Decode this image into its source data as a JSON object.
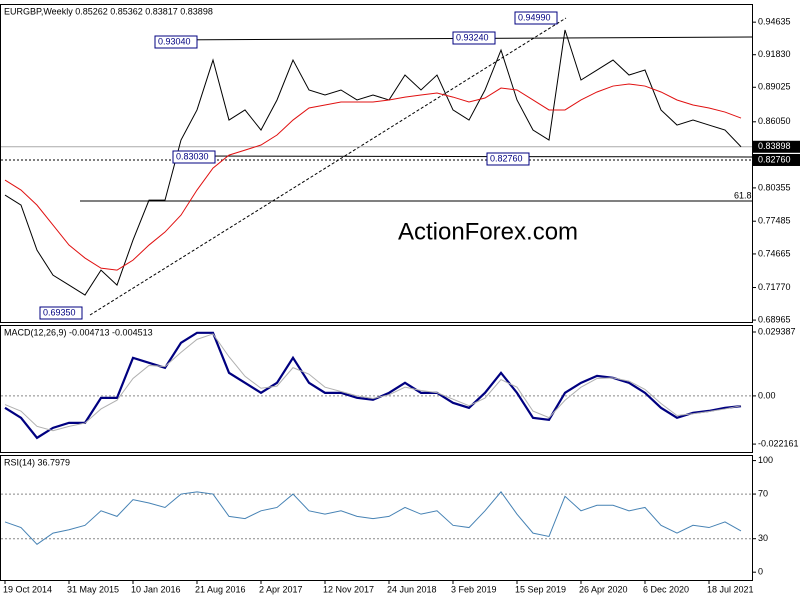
{
  "chart_data": [
    {
      "type": "line",
      "title": "EURGBP,Weekly  0.85262 0.85362 0.83817 0.83898",
      "series": [
        {
          "color": "#000000",
          "values": [
            0.7974,
            0.7887,
            0.7499,
            0.7284,
            0.7198,
            0.7112,
            0.7327,
            0.7198,
            0.7586,
            0.793,
            0.793,
            0.8448,
            0.8707,
            0.9137,
            0.862,
            0.8707,
            0.8534,
            0.8793,
            0.9137,
            0.8879,
            0.8836,
            0.8879,
            0.8793,
            0.8836,
            0.8793,
            0.9008,
            0.8879,
            0.9008,
            0.8707,
            0.862,
            0.8879,
            0.9223,
            0.8793,
            0.8534,
            0.8448,
            0.9396,
            0.8965,
            0.9051,
            0.9137,
            0.9008,
            0.9051,
            0.8707,
            0.8577,
            0.862,
            0.8577,
            0.8534,
            0.839
          ]
        },
        {
          "color": "#e01010",
          "values": [
            0.8103,
            0.8017,
            0.7887,
            0.7715,
            0.7543,
            0.7431,
            0.7344,
            0.7327,
            0.7413,
            0.7543,
            0.7655,
            0.7801,
            0.8017,
            0.8206,
            0.8318,
            0.8361,
            0.8405,
            0.8491,
            0.862,
            0.8724,
            0.875,
            0.8776,
            0.8776,
            0.8776,
            0.8793,
            0.8818,
            0.8836,
            0.8853,
            0.8818,
            0.8776,
            0.881,
            0.8896,
            0.8879,
            0.8793,
            0.8707,
            0.8707,
            0.8793,
            0.8862,
            0.8913,
            0.8931,
            0.8913,
            0.8862,
            0.8793,
            0.875,
            0.8724,
            0.8689,
            0.8637
          ]
        }
      ],
      "ylim": [
        0.688,
        0.962
      ],
      "yticks": [
        0.94635,
        {
          "value": 0.9183,
          "label": "0.91830"
        },
        0.89025,
        {
          "value": 0.8605,
          "label": "0.86050"
        },
        0.80355,
        0.77485,
        0.74665,
        {
          "value": 0.7177,
          "label": "0.71770"
        },
        0.68965
      ],
      "price_markers": [
        0.83898,
        {
          "value": 0.8276,
          "label": "0.82760"
        }
      ],
      "annotations": [
        "0.93040",
        "0.93240",
        "0.94990",
        "0.83030",
        "0.82760",
        "0.69350",
        "61.8"
      ],
      "watermark": "ActionForex.com"
    },
    {
      "type": "line",
      "title": "MACD(12,26,9) -0.004713 -0.004513",
      "series": [
        {
          "color": "#000080",
          "values": [
            -0.0055,
            -0.0101,
            -0.0193,
            -0.0147,
            -0.0124,
            -0.0124,
            -0.0009,
            -0.0009,
            0.0175,
            0.0152,
            0.0129,
            0.0244,
            0.029,
            0.029,
            0.0106,
            0.006,
            0.0014,
            0.006,
            0.0175,
            0.006,
            0.0014,
            0.0014,
            -0.0009,
            -0.0018,
            0.0014,
            0.006,
            0.0014,
            0.0014,
            -0.0032,
            -0.0055,
            0.0014,
            0.0106,
            0.0014,
            -0.0101,
            -0.011,
            0.0014,
            0.006,
            0.0092,
            0.0083,
            0.006,
            0.0014,
            -0.0055,
            -0.0101,
            -0.0078,
            -0.0069,
            -0.0055,
            -0.0047
          ]
        },
        {
          "color": "#b0b0b0",
          "values": [
            -0.004,
            -0.007,
            -0.014,
            -0.016,
            -0.014,
            -0.0125,
            -0.006,
            -0.002,
            0.008,
            0.014,
            0.0135,
            0.02,
            0.026,
            0.0285,
            0.018,
            0.009,
            0.0035,
            0.0045,
            0.013,
            0.01,
            0.004,
            0.002,
            0.0,
            -0.0012,
            0.0005,
            0.004,
            0.0025,
            0.0015,
            -0.0015,
            -0.0045,
            -0.001,
            0.0075,
            0.004,
            -0.007,
            -0.01,
            -0.002,
            0.004,
            0.008,
            0.0083,
            0.0068,
            0.003,
            -0.0035,
            -0.009,
            -0.0082,
            -0.0072,
            -0.006,
            -0.0045
          ]
        }
      ],
      "ylim": [
        -0.0258,
        0.0326
      ],
      "yticks": [
        0.029387,
        {
          "value": 0,
          "label": "0.00"
        },
        -0.022161
      ],
      "levels": [
        0
      ]
    },
    {
      "type": "line",
      "title": "RSI(14) 36.7979",
      "categories": [
        "19 Oct 2014",
        null,
        null,
        null,
        "31 May 2015",
        null,
        null,
        null,
        "10 Jan 2016",
        null,
        null,
        null,
        "21 Aug 2016",
        null,
        null,
        null,
        "2 Apr 2017",
        null,
        null,
        null,
        "12 Nov 2017",
        null,
        null,
        null,
        "24 Jun 2018",
        null,
        null,
        null,
        "3 Feb 2019",
        null,
        null,
        null,
        "15 Sep 2019",
        null,
        null,
        null,
        "26 Apr 2020",
        null,
        null,
        null,
        "6 Dec 2020",
        null,
        null,
        null,
        "18 Jul 2021",
        null,
        null
      ],
      "series": [
        {
          "color": "#4682b4",
          "values": [
            45,
            40,
            25,
            35,
            38,
            42,
            55,
            50,
            65,
            62,
            58,
            70,
            72,
            70,
            50,
            48,
            55,
            58,
            70,
            55,
            52,
            55,
            50,
            48,
            50,
            58,
            52,
            55,
            42,
            40,
            55,
            72,
            52,
            35,
            32,
            68,
            55,
            60,
            60,
            55,
            58,
            42,
            35,
            42,
            40,
            45,
            37
          ]
        }
      ],
      "ylim": [
        -7,
        105
      ],
      "yticks": [
        100,
        70,
        30,
        0
      ],
      "levels": [
        70,
        30
      ]
    }
  ]
}
